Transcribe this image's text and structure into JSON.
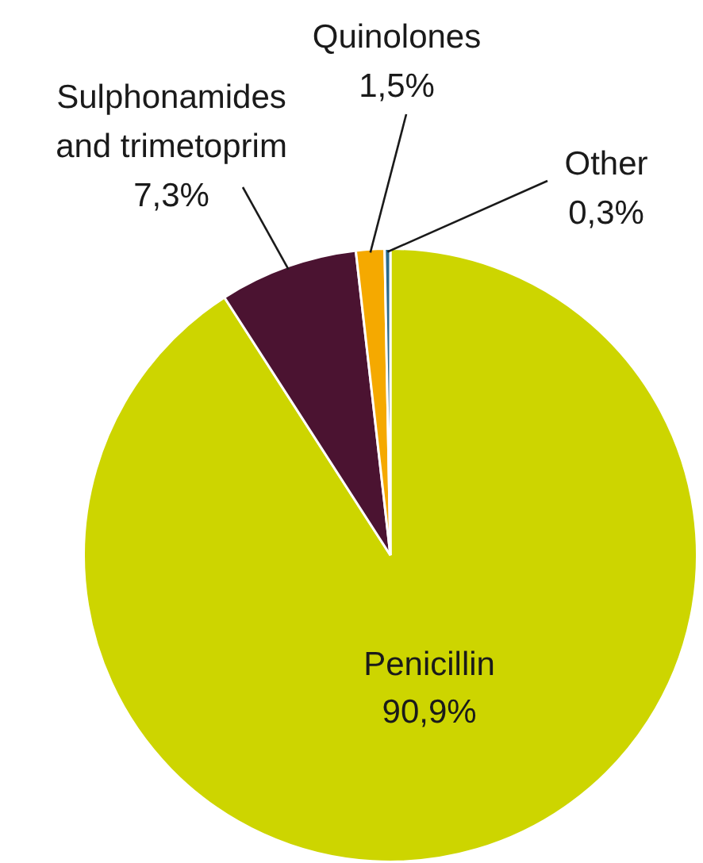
{
  "chart_data": {
    "type": "pie",
    "categories": [
      "Penicillin",
      "Sulphonamides and trimetoprim",
      "Quinolones",
      "Other"
    ],
    "values": [
      90.9,
      7.3,
      1.5,
      0.3
    ],
    "value_labels": [
      "90,9%",
      "7,3%",
      "1,5%",
      "0,3%"
    ],
    "colors": [
      "#cdd500",
      "#4b1331",
      "#f5a900",
      "#2b6a8c"
    ],
    "legend": false
  }
}
